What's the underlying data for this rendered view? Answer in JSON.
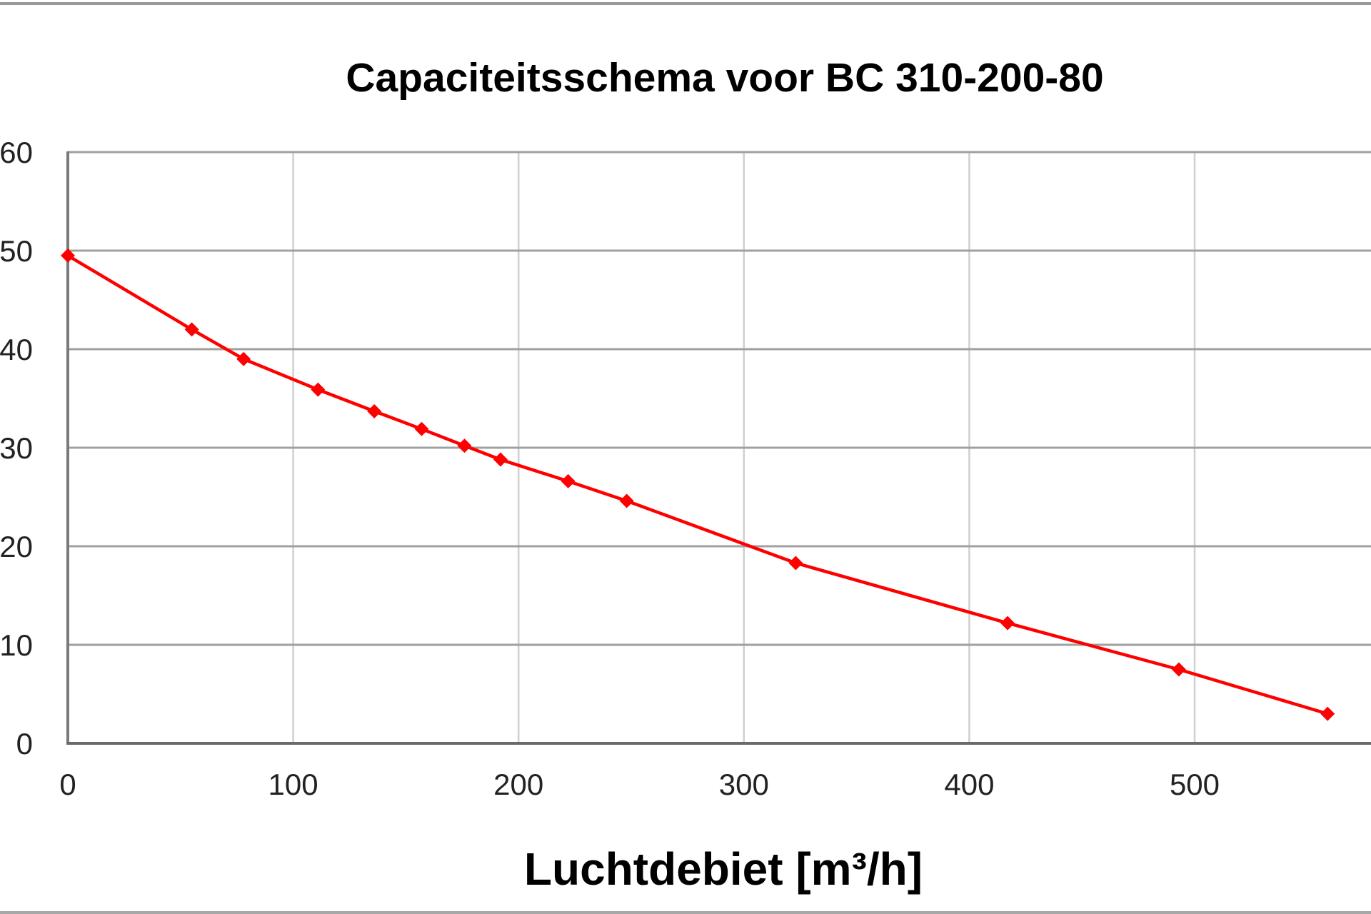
{
  "chart_data": {
    "type": "line",
    "title": "Capaciteitsschema voor BC 310-200-80",
    "xlabel": "Luchtdebiet [m³/h]",
    "ylabel": "",
    "xlim": [
      0,
      570
    ],
    "ylim": [
      0,
      60
    ],
    "xticks": [
      0,
      100,
      200,
      300,
      400,
      500
    ],
    "yticks": [
      0,
      10,
      20,
      30,
      40,
      50,
      60
    ],
    "grid": true,
    "legend": null,
    "series": [
      {
        "name": "BC 310-200-80",
        "color": "#ff0000",
        "marker": "diamond",
        "x": [
          0,
          55,
          78,
          111,
          136,
          157,
          176,
          192,
          222,
          248,
          323,
          417,
          493,
          559
        ],
        "y": [
          49.5,
          42.0,
          39.0,
          35.9,
          33.7,
          31.9,
          30.2,
          28.8,
          26.6,
          24.6,
          18.3,
          12.2,
          7.5,
          3.0
        ]
      }
    ]
  },
  "colors": {
    "line": "#ff0000",
    "axis": "#7a7a7a",
    "grid_h": "#a0a0a0",
    "grid_v": "#cfcfcf",
    "text": "#000000"
  }
}
